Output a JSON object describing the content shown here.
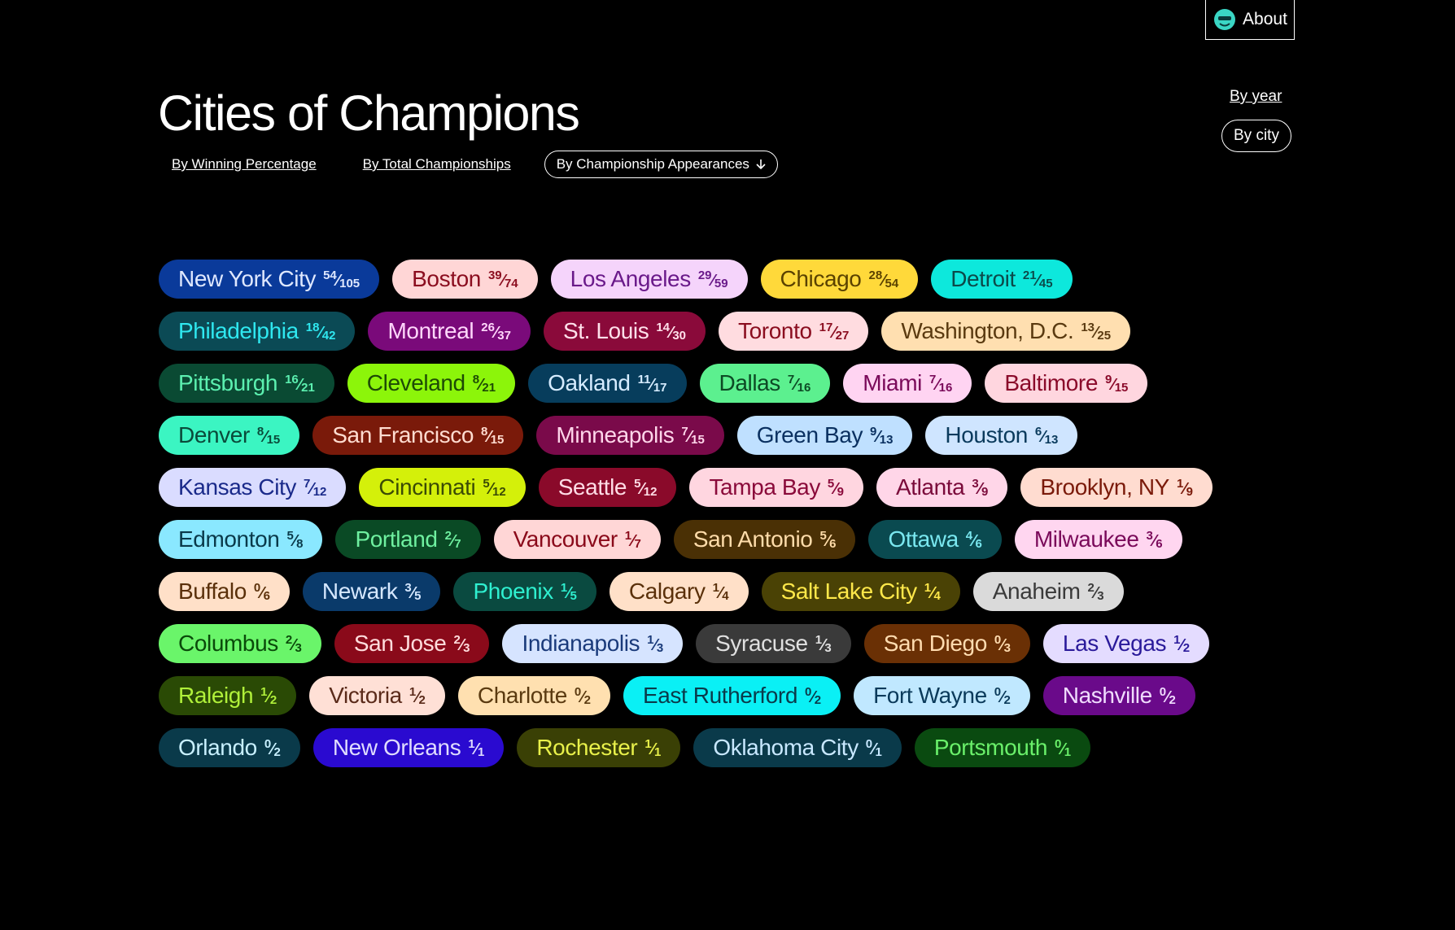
{
  "header": {
    "about": "About",
    "title": "Cities of Champions",
    "sort_options": [
      "By Winning Percentage",
      "By Total Championships",
      "By Championship Appearances"
    ],
    "view_options": [
      "By year",
      "By city"
    ]
  },
  "cities": {
    "rows": [
      [
        {
          "name": "New York City",
          "record": "54⁄105",
          "bg": "#0a3a9a",
          "fg": "#dfe8ff"
        },
        {
          "name": "Boston",
          "record": "39⁄74",
          "bg": "#ffd6d6",
          "fg": "#8b0d1f"
        },
        {
          "name": "Los Angeles",
          "record": "29⁄59",
          "bg": "#f5d4fb",
          "fg": "#6a1a8a"
        },
        {
          "name": "Chicago",
          "record": "28⁄54",
          "bg": "#ffd93a",
          "fg": "#5a4200"
        },
        {
          "name": "Detroit",
          "record": "21⁄45",
          "bg": "#0de8dc",
          "fg": "#0c4a4a"
        }
      ],
      [
        {
          "name": "Philadelphia",
          "record": "18⁄42",
          "bg": "#0b4a55",
          "fg": "#2fe8f0"
        },
        {
          "name": "Montreal",
          "record": "26⁄37",
          "bg": "#7a0a7a",
          "fg": "#ffd6fb"
        },
        {
          "name": "St. Louis",
          "record": "14⁄30",
          "bg": "#8a0a3a",
          "fg": "#ffe0ea"
        },
        {
          "name": "Toronto",
          "record": "17⁄27",
          "bg": "#ffdce0",
          "fg": "#8a0d1f"
        },
        {
          "name": "Washington, D.C.",
          "record": "13⁄25",
          "bg": "#ffdfb0",
          "fg": "#5a3a10"
        }
      ],
      [
        {
          "name": "Pittsburgh",
          "record": "16⁄21",
          "bg": "#0a4a33",
          "fg": "#5cf0b0"
        },
        {
          "name": "Cleveland",
          "record": "8⁄21",
          "bg": "#8cf50a",
          "fg": "#1d4a05"
        },
        {
          "name": "Oakland",
          "record": "11⁄17",
          "bg": "#073d5c",
          "fg": "#d6ecff"
        },
        {
          "name": "Dallas",
          "record": "7⁄16",
          "bg": "#5cf08f",
          "fg": "#0d4a25"
        },
        {
          "name": "Miami",
          "record": "7⁄16",
          "bg": "#ffd4f2",
          "fg": "#7a0a5a"
        },
        {
          "name": "Baltimore",
          "record": "9⁄15",
          "bg": "#ffd6df",
          "fg": "#8a0a2a"
        }
      ],
      [
        {
          "name": "Denver",
          "record": "8⁄15",
          "bg": "#3bf5c2",
          "fg": "#0a4a3a"
        },
        {
          "name": "San Francisco",
          "record": "8⁄15",
          "bg": "#7a1a0a",
          "fg": "#ffdcd0"
        },
        {
          "name": "Minneapolis",
          "record": "7⁄15",
          "bg": "#7a0a4a",
          "fg": "#ffd6ea"
        },
        {
          "name": "Green Bay",
          "record": "9⁄13",
          "bg": "#bfe0ff",
          "fg": "#0a3060"
        },
        {
          "name": "Houston",
          "record": "6⁄13",
          "bg": "#cfe5ff",
          "fg": "#0a3a5c"
        }
      ],
      [
        {
          "name": "Kansas City",
          "record": "7⁄12",
          "bg": "#dadcff",
          "fg": "#1a2a8a"
        },
        {
          "name": "Cincinnati",
          "record": "5⁄12",
          "bg": "#d4f00a",
          "fg": "#3a4a05"
        },
        {
          "name": "Seattle",
          "record": "5⁄12",
          "bg": "#8a0a2a",
          "fg": "#ffdce5"
        },
        {
          "name": "Tampa Bay",
          "record": "5⁄9",
          "bg": "#ffd6e0",
          "fg": "#8a0a3a"
        },
        {
          "name": "Atlanta",
          "record": "3⁄9",
          "bg": "#ffd6e8",
          "fg": "#7a0a3a"
        },
        {
          "name": "Brooklyn, NY",
          "record": "1⁄9",
          "bg": "#ffdcd0",
          "fg": "#7a1a0a"
        }
      ],
      [
        {
          "name": "Edmonton",
          "record": "5⁄8",
          "bg": "#8ae8ff",
          "fg": "#0a3a4a"
        },
        {
          "name": "Portland",
          "record": "2⁄7",
          "bg": "#0a4a25",
          "fg": "#6ff0a0"
        },
        {
          "name": "Vancouver",
          "record": "1⁄7",
          "bg": "#ffd6d6",
          "fg": "#8a0a1a"
        },
        {
          "name": "San Antonio",
          "record": "5⁄6",
          "bg": "#4a3005",
          "fg": "#ffdcaa"
        },
        {
          "name": "Ottawa",
          "record": "4⁄6",
          "bg": "#0a4a50",
          "fg": "#7ae8f0"
        },
        {
          "name": "Milwaukee",
          "record": "3⁄6",
          "bg": "#ffd6f0",
          "fg": "#7a0a5a"
        }
      ],
      [
        {
          "name": "Buffalo",
          "record": "0⁄6",
          "bg": "#ffe0c8",
          "fg": "#5a300a"
        },
        {
          "name": "Newark",
          "record": "3⁄5",
          "bg": "#0a3a6a",
          "fg": "#d6e8ff"
        },
        {
          "name": "Phoenix",
          "record": "1⁄5",
          "bg": "#0a4a40",
          "fg": "#2ff0d0"
        },
        {
          "name": "Calgary",
          "record": "1⁄4",
          "bg": "#ffe0c8",
          "fg": "#5a300a"
        },
        {
          "name": "Salt Lake City",
          "record": "1⁄4",
          "bg": "#4a4205",
          "fg": "#ffe84a"
        },
        {
          "name": "Anaheim",
          "record": "2⁄3",
          "bg": "#dadada",
          "fg": "#3a3a3a"
        }
      ],
      [
        {
          "name": "Columbus",
          "record": "2⁄3",
          "bg": "#6af56a",
          "fg": "#0a4a0a"
        },
        {
          "name": "San Jose",
          "record": "2⁄3",
          "bg": "#8a0a1a",
          "fg": "#ffdcdc"
        },
        {
          "name": "Indianapolis",
          "record": "1⁄3",
          "bg": "#d6e4ff",
          "fg": "#1a3a7a"
        },
        {
          "name": "Syracuse",
          "record": "1⁄3",
          "bg": "#3a3a3a",
          "fg": "#e0e0e0"
        },
        {
          "name": "San Diego",
          "record": "0⁄3",
          "bg": "#6a3005",
          "fg": "#ffdcb0"
        },
        {
          "name": "Las Vegas",
          "record": "1⁄2",
          "bg": "#e4dcff",
          "fg": "#2a1a9a"
        }
      ],
      [
        {
          "name": "Raleigh",
          "record": "1⁄2",
          "bg": "#2a4a05",
          "fg": "#b0f03a"
        },
        {
          "name": "Victoria",
          "record": "1⁄2",
          "bg": "#ffe0d6",
          "fg": "#5a2a1a"
        },
        {
          "name": "Charlotte",
          "record": "0⁄2",
          "bg": "#ffe0b0",
          "fg": "#5a3a10"
        },
        {
          "name": "East Rutherford",
          "record": "0⁄2",
          "bg": "#0af0f5",
          "fg": "#0a3a4a"
        },
        {
          "name": "Fort Wayne",
          "record": "0⁄2",
          "bg": "#c0e8ff",
          "fg": "#0a3a5a"
        },
        {
          "name": "Nashville",
          "record": "0⁄2",
          "bg": "#6a0a8a",
          "fg": "#f0dcff"
        }
      ],
      [
        {
          "name": "Orlando",
          "record": "0⁄2",
          "bg": "#0a3a4a",
          "fg": "#c8f0ff"
        },
        {
          "name": "New Orleans",
          "record": "1⁄1",
          "bg": "#2a0ad0",
          "fg": "#e0dcff"
        },
        {
          "name": "Rochester",
          "record": "1⁄1",
          "bg": "#3a4005",
          "fg": "#e8f04a"
        },
        {
          "name": "Oklahoma City",
          "record": "0⁄1",
          "bg": "#0a3a4a",
          "fg": "#c8e8ff"
        },
        {
          "name": "Portsmouth",
          "record": "0⁄1",
          "bg": "#0a4a10",
          "fg": "#6af06a"
        }
      ]
    ]
  }
}
